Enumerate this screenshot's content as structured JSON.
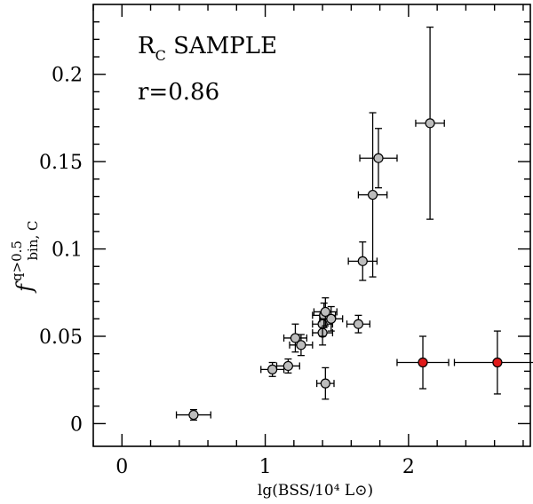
{
  "chart_data": {
    "type": "scatter",
    "xlabel": "lg(BSS/10⁴ L⊙)",
    "ylabel": {
      "main": "f",
      "superscript": "q>0.5",
      "subscript": "bin, C"
    },
    "xlim": [
      -0.2,
      2.85
    ],
    "ylim": [
      -0.013,
      0.24
    ],
    "x_ticks": [
      0,
      1,
      2
    ],
    "y_ticks": [
      0,
      0.05,
      0.1,
      0.15,
      0.2
    ],
    "x_tick_labels": [
      "0",
      "1",
      "2"
    ],
    "y_tick_labels": [
      "0",
      "0.05",
      "0.1",
      "0.15",
      "0.2"
    ],
    "grid": false,
    "annotations": [
      {
        "id": "sample",
        "base": "R",
        "sub": "C",
        "rest": " SAMPLE"
      },
      {
        "id": "corr",
        "text": "r=0.86"
      }
    ],
    "series": [
      {
        "color": "#bdbdbd",
        "points": [
          {
            "x": 0.5,
            "y": 0.005,
            "xerr": 0.12,
            "yerr": 0.003
          },
          {
            "x": 1.05,
            "y": 0.031,
            "xerr": 0.08,
            "yerr": 0.004
          },
          {
            "x": 1.16,
            "y": 0.033,
            "xerr": 0.08,
            "yerr": 0.004
          },
          {
            "x": 1.21,
            "y": 0.049,
            "xerr": 0.08,
            "yerr": 0.008
          },
          {
            "x": 1.25,
            "y": 0.045,
            "xerr": 0.08,
            "yerr": 0.006
          },
          {
            "x": 1.4,
            "y": 0.052,
            "xerr": 0.07,
            "yerr": 0.007
          },
          {
            "x": 1.4,
            "y": 0.057,
            "xerr": 0.07,
            "yerr": 0.007
          },
          {
            "x": 1.41,
            "y": 0.062,
            "xerr": 0.08,
            "yerr": 0.007
          },
          {
            "x": 1.42,
            "y": 0.064,
            "xerr": 0.08,
            "yerr": 0.008
          },
          {
            "x": 1.46,
            "y": 0.06,
            "xerr": 0.08,
            "yerr": 0.007
          },
          {
            "x": 1.42,
            "y": 0.023,
            "xerr": 0.06,
            "yerr": 0.009
          },
          {
            "x": 1.65,
            "y": 0.057,
            "xerr": 0.08,
            "yerr": 0.005
          },
          {
            "x": 1.68,
            "y": 0.093,
            "xerr": 0.1,
            "yerr": 0.011
          },
          {
            "x": 1.75,
            "y": 0.131,
            "xerr": 0.1,
            "yerr": 0.047
          },
          {
            "x": 1.79,
            "y": 0.152,
            "xerr": 0.13,
            "yerr": 0.017
          },
          {
            "x": 2.15,
            "y": 0.172,
            "xerr": 0.1,
            "yerr": 0.055
          }
        ]
      },
      {
        "color": "#e01b1b",
        "points": [
          {
            "x": 2.1,
            "y": 0.035,
            "xerr": 0.18,
            "yerr": 0.015
          },
          {
            "x": 2.62,
            "y": 0.035,
            "xerr": 0.3,
            "yerr": 0.018
          }
        ]
      }
    ]
  }
}
